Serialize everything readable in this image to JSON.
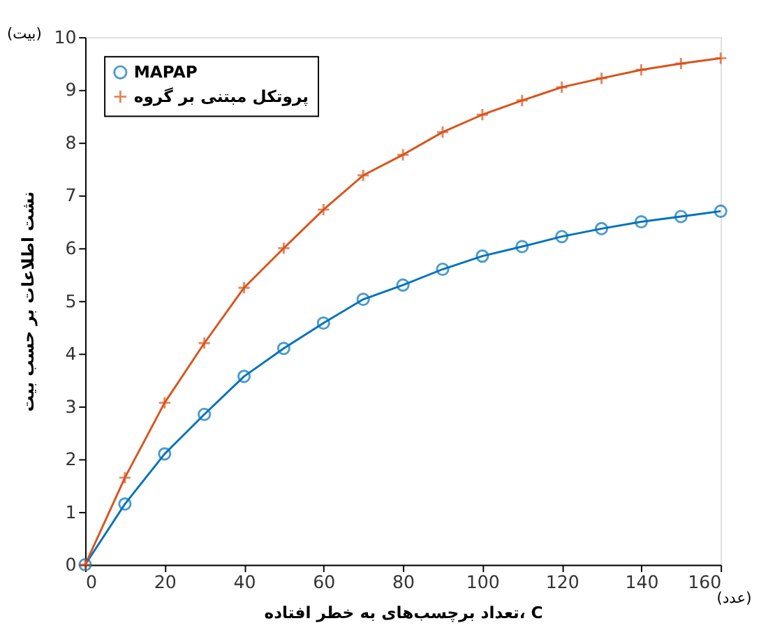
{
  "chart_data": {
    "type": "line",
    "xlabel": "تعداد برچسب‌های به خطر افتاده، C",
    "ylabel": "نشت اطلاعات بر حسب بیت",
    "annotations": [
      "(بیت)",
      "(عدد)"
    ],
    "x": [
      0,
      10,
      20,
      30,
      40,
      50,
      60,
      70,
      80,
      90,
      100,
      110,
      120,
      130,
      140,
      150,
      160
    ],
    "series": [
      {
        "name": "MAPAP",
        "color": "#0072bd",
        "marker": "circle",
        "values": [
          0,
          1.15,
          2.1,
          2.85,
          3.57,
          4.1,
          4.58,
          5.03,
          5.3,
          5.6,
          5.85,
          6.03,
          6.22,
          6.37,
          6.5,
          6.6,
          6.7
        ]
      },
      {
        "name": "پروتکل مبتنی بر گروه",
        "color": "#d95319",
        "marker": "cross",
        "values": [
          0,
          1.65,
          3.07,
          4.2,
          5.25,
          6.0,
          6.73,
          7.38,
          7.77,
          8.2,
          8.53,
          8.8,
          9.05,
          9.22,
          9.38,
          9.5,
          9.6
        ]
      }
    ],
    "xlim": [
      0,
      160
    ],
    "xticks": [
      0,
      20,
      40,
      60,
      80,
      100,
      120,
      140,
      160
    ],
    "ylim": [
      0,
      10
    ],
    "yticks": [
      0,
      1,
      2,
      3,
      4,
      5,
      6,
      7,
      8,
      9,
      10
    ],
    "grid": false,
    "legend": "top left",
    "line_style": "solid"
  }
}
